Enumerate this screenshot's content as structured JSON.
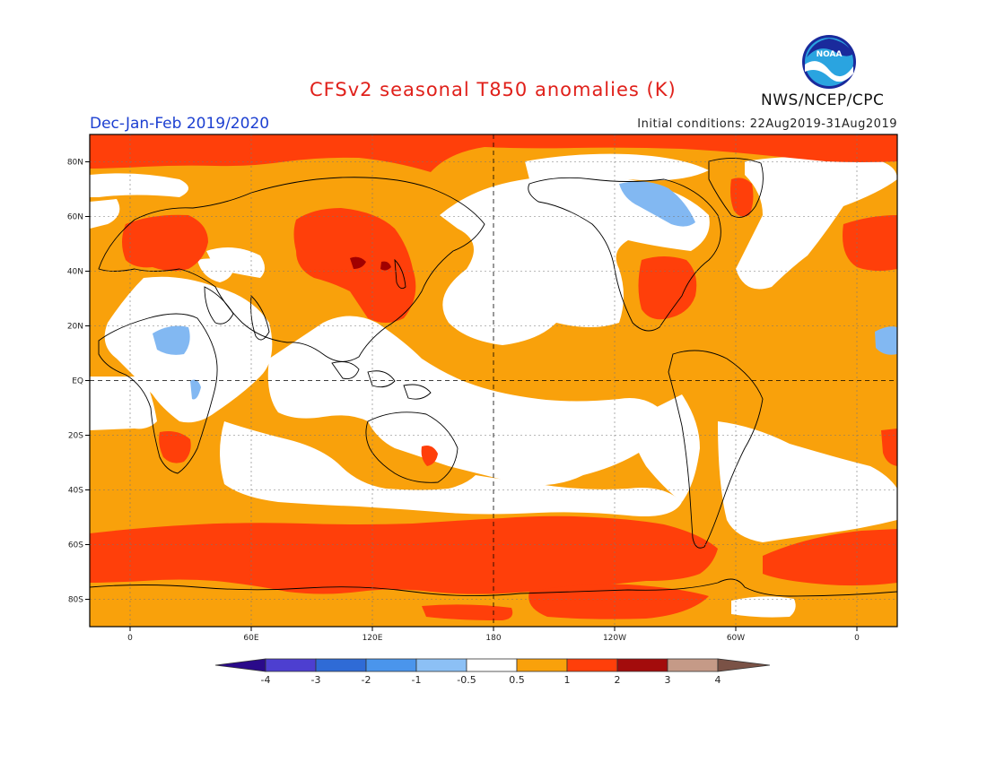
{
  "header": {
    "title": "CFSv2 seasonal T850 anomalies (K)",
    "season": "Dec-Jan-Feb 2019/2020",
    "initial_conditions": "Initial conditions: 22Aug2019-31Aug2019",
    "agency": "NWS/NCEP/CPC",
    "logo_text": "NOAA"
  },
  "map": {
    "projection": "equirectangular",
    "lon_range": [
      -20,
      380
    ],
    "lat_range": [
      -90,
      90
    ],
    "lat_ticks": [
      {
        "value": 80,
        "label": "80N"
      },
      {
        "value": 60,
        "label": "60N"
      },
      {
        "value": 40,
        "label": "40N"
      },
      {
        "value": 20,
        "label": "20N"
      },
      {
        "value": 0,
        "label": "EQ"
      },
      {
        "value": -20,
        "label": "20S"
      },
      {
        "value": -40,
        "label": "40S"
      },
      {
        "value": -60,
        "label": "60S"
      },
      {
        "value": -80,
        "label": "80S"
      }
    ],
    "lon_ticks": [
      {
        "value": 0,
        "label": "0"
      },
      {
        "value": 60,
        "label": "60E"
      },
      {
        "value": 120,
        "label": "120E"
      },
      {
        "value": 180,
        "label": "180"
      },
      {
        "value": 240,
        "label": "120W"
      },
      {
        "value": 300,
        "label": "60W"
      },
      {
        "value": 360,
        "label": "0"
      }
    ],
    "colors": {
      "neutral": "#ffffff",
      "warm_1": "#f9a10b",
      "warm_2": "#ff3f0a",
      "warm_3": "#c8170f",
      "warm_4": "#a10000",
      "cool_1": "#82b8f2",
      "coast": "#000000"
    }
  },
  "legend": {
    "labels": [
      "-4",
      "-3",
      "-2",
      "-1",
      "-0.5",
      "0.5",
      "1",
      "2",
      "3",
      "4"
    ],
    "colors": [
      "#2a0a8a",
      "#4d3fd0",
      "#2f6bd6",
      "#4a95ec",
      "#8cc0f5",
      "#ffffff",
      "#f9a10b",
      "#ff3f0a",
      "#a30c0c",
      "#c59a87",
      "#7a5246"
    ]
  }
}
